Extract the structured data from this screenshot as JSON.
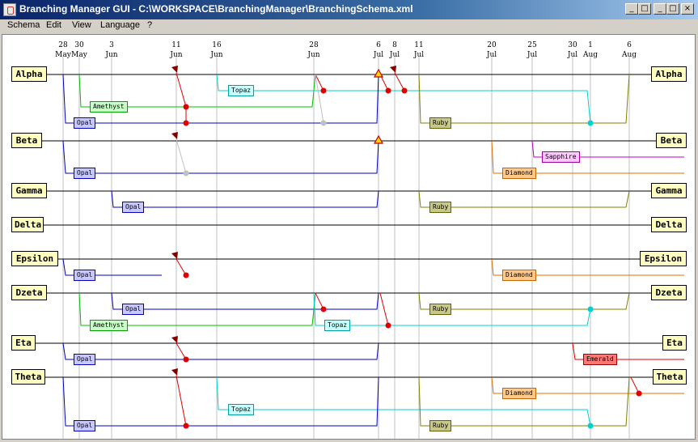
{
  "window": {
    "title": "Branching Manager GUI - C:\\WORKSPACE\\BranchingManager\\BranchingSchema.xml"
  },
  "menu": [
    "Schema",
    "Edit",
    "View",
    "Language",
    "?"
  ],
  "controls": {
    "minimize": "_",
    "maximize": "□",
    "close": "×"
  },
  "dates": [
    {
      "day": "28",
      "month": "May"
    },
    {
      "day": "30",
      "month": "May"
    },
    {
      "day": "3",
      "month": "Jun"
    },
    {
      "day": "11",
      "month": "Jun"
    },
    {
      "day": "16",
      "month": "Jun"
    },
    {
      "day": "28",
      "month": "Jun"
    },
    {
      "day": "6",
      "month": "Jul"
    },
    {
      "day": "8",
      "month": "Jul"
    },
    {
      "day": "11",
      "month": "Jul"
    },
    {
      "day": "20",
      "month": "Jul"
    },
    {
      "day": "25",
      "month": "Jul"
    },
    {
      "day": "30",
      "month": "Jul"
    },
    {
      "day": "1",
      "month": "Aug"
    },
    {
      "day": "6",
      "month": "Aug"
    }
  ],
  "lanes": [
    "Alpha",
    "Beta",
    "Gamma",
    "Delta",
    "Epsilon",
    "Dzeta",
    "Eta",
    "Theta"
  ],
  "branch_colors": {
    "Opal": "#0000c0",
    "Amethyst": "#00c000",
    "Topaz": "#00d0d0",
    "Ruby": "#808000",
    "Sapphire": "#c000c0",
    "Diamond": "#e07000",
    "Emerald": "#e00000",
    "merge": "#e00000",
    "gray": "#c0c0c0"
  },
  "branches": [
    {
      "lane": "Alpha",
      "name": "Amethyst"
    },
    {
      "lane": "Alpha",
      "name": "Topaz"
    },
    {
      "lane": "Alpha",
      "name": "Opal"
    },
    {
      "lane": "Alpha",
      "name": "Ruby"
    },
    {
      "lane": "Beta",
      "name": "Opal"
    },
    {
      "lane": "Beta",
      "name": "Sapphire"
    },
    {
      "lane": "Beta",
      "name": "Diamond"
    },
    {
      "lane": "Gamma",
      "name": "Opal"
    },
    {
      "lane": "Gamma",
      "name": "Ruby"
    },
    {
      "lane": "Epsilon",
      "name": "Opal"
    },
    {
      "lane": "Epsilon",
      "name": "Diamond"
    },
    {
      "lane": "Dzeta",
      "name": "Opal"
    },
    {
      "lane": "Dzeta",
      "name": "Ruby"
    },
    {
      "lane": "Dzeta",
      "name": "Amethyst"
    },
    {
      "lane": "Dzeta",
      "name": "Topaz"
    },
    {
      "lane": "Eta",
      "name": "Opal"
    },
    {
      "lane": "Eta",
      "name": "Emerald"
    },
    {
      "lane": "Theta",
      "name": "Diamond"
    },
    {
      "lane": "Theta",
      "name": "Topaz"
    },
    {
      "lane": "Theta",
      "name": "Opal"
    },
    {
      "lane": "Theta",
      "name": "Ruby"
    }
  ]
}
